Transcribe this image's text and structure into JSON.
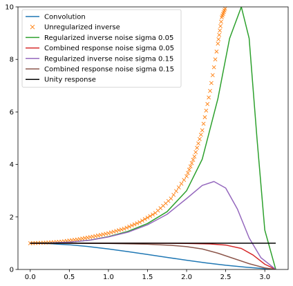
{
  "chart_data": {
    "type": "line",
    "title": "",
    "xlabel": "",
    "ylabel": "",
    "xlim": [
      -0.157,
      3.299
    ],
    "ylim": [
      0,
      10
    ],
    "xticks": [
      0.0,
      0.5,
      1.0,
      1.5,
      2.0,
      2.5,
      3.0
    ],
    "xtick_labels": [
      "0.0",
      "0.5",
      "1.0",
      "1.5",
      "2.0",
      "2.5",
      "3.0"
    ],
    "yticks": [
      0,
      2,
      4,
      6,
      8,
      10
    ],
    "ytick_labels": [
      "0",
      "2",
      "4",
      "6",
      "8",
      "10"
    ],
    "grid": false,
    "legend_position": "top-left",
    "series": [
      {
        "name": "Convolution",
        "color": "#1f77b4",
        "style": "line",
        "x": [
          0.0,
          0.25,
          0.5,
          0.75,
          1.0,
          1.25,
          1.5,
          1.75,
          2.0,
          2.25,
          2.5,
          2.75,
          3.0,
          3.14
        ],
        "y": [
          1.0,
          0.98,
          0.94,
          0.87,
          0.78,
          0.68,
          0.57,
          0.46,
          0.35,
          0.25,
          0.16,
          0.09,
          0.03,
          0.0
        ]
      },
      {
        "name": "Unregularized inverse",
        "color": "#ff7f0e",
        "style": "markers",
        "x": [
          0.0,
          0.2,
          0.4,
          0.6,
          0.8,
          1.0,
          1.2,
          1.4,
          1.6,
          1.8,
          2.0,
          2.1,
          2.2,
          2.3,
          2.4,
          2.45,
          2.5
        ],
        "y": [
          1.0,
          1.02,
          1.06,
          1.14,
          1.25,
          1.38,
          1.55,
          1.8,
          2.15,
          2.7,
          3.55,
          4.3,
          5.3,
          6.8,
          8.6,
          9.6,
          10.0
        ]
      },
      {
        "name": "Regularized inverse noise sigma 0.05",
        "color": "#2ca02c",
        "style": "line",
        "x": [
          0.0,
          0.25,
          0.5,
          0.75,
          1.0,
          1.25,
          1.5,
          1.75,
          2.0,
          2.2,
          2.4,
          2.55,
          2.7,
          2.8,
          2.9,
          3.0,
          3.14
        ],
        "y": [
          1.0,
          1.01,
          1.04,
          1.11,
          1.25,
          1.45,
          1.75,
          2.2,
          3.0,
          4.2,
          6.5,
          8.8,
          10.0,
          8.8,
          5.0,
          1.5,
          0.0
        ]
      },
      {
        "name": "Combined response noise sigma 0.05",
        "color": "#d62728",
        "style": "line",
        "x": [
          0.0,
          0.5,
          1.0,
          1.5,
          2.0,
          2.3,
          2.5,
          2.7,
          2.85,
          3.0,
          3.14
        ],
        "y": [
          1.0,
          1.0,
          1.0,
          1.0,
          0.99,
          0.97,
          0.93,
          0.8,
          0.55,
          0.2,
          0.0
        ]
      },
      {
        "name": "Regularized inverse noise sigma 0.15",
        "color": "#9467bd",
        "style": "line",
        "x": [
          0.0,
          0.25,
          0.5,
          0.75,
          1.0,
          1.25,
          1.5,
          1.75,
          2.0,
          2.2,
          2.35,
          2.5,
          2.65,
          2.8,
          2.95,
          3.14
        ],
        "y": [
          1.0,
          1.01,
          1.04,
          1.11,
          1.24,
          1.42,
          1.7,
          2.1,
          2.7,
          3.2,
          3.35,
          3.1,
          2.3,
          1.2,
          0.45,
          0.0
        ]
      },
      {
        "name": "Combined response noise sigma 0.15",
        "color": "#8c564b",
        "style": "line",
        "x": [
          0.0,
          0.5,
          1.0,
          1.5,
          1.8,
          2.0,
          2.2,
          2.4,
          2.6,
          2.8,
          3.0,
          3.14
        ],
        "y": [
          1.0,
          1.0,
          0.99,
          0.96,
          0.92,
          0.87,
          0.78,
          0.62,
          0.42,
          0.22,
          0.06,
          0.0
        ]
      },
      {
        "name": "Unity response",
        "color": "#000000",
        "style": "line",
        "x": [
          0.0,
          3.14
        ],
        "y": [
          1.0,
          1.0
        ]
      }
    ]
  }
}
